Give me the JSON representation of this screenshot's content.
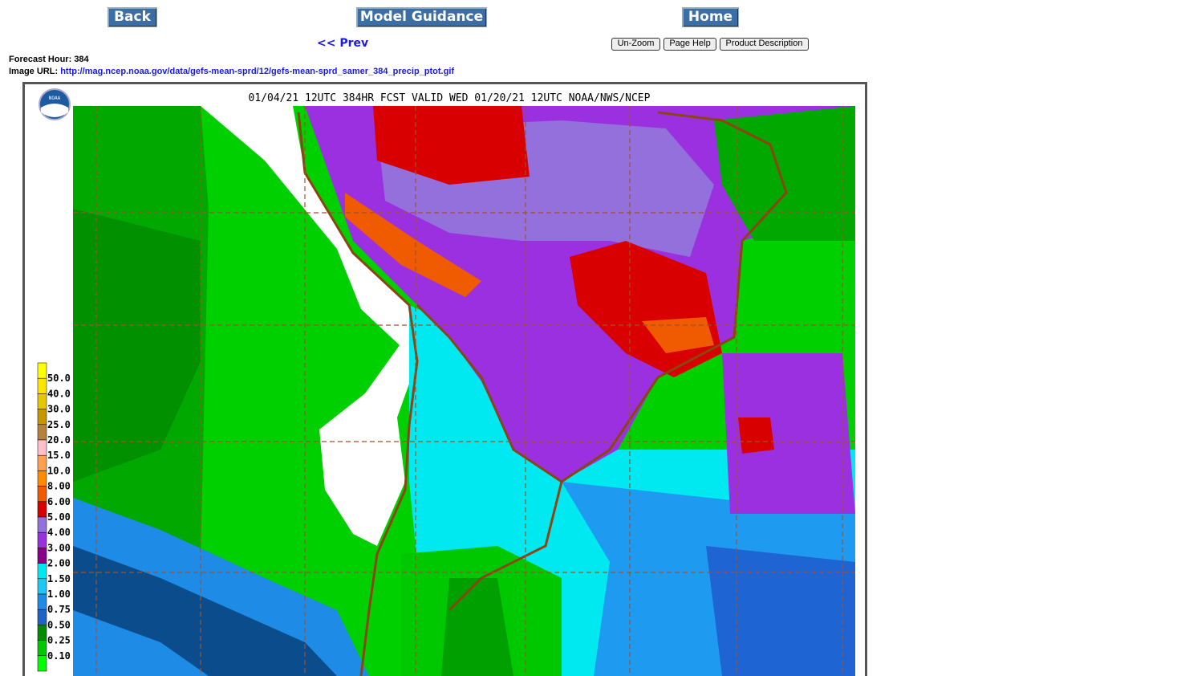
{
  "nav": {
    "back": "Back",
    "model_guidance": "Model Guidance",
    "home": "Home",
    "prev": "<< Prev",
    "unzoom": "Un-Zoom",
    "page_help": "Page Help",
    "product_description": "Product Description"
  },
  "info": {
    "forecast_hour_label": "Forecast Hour:",
    "forecast_hour": 384,
    "image_url_label": "Image URL:",
    "image_url": "http://mag.ncep.noaa.gov/data/gefs-mean-sprd/12/gefs-mean-sprd_samer_384_precip_ptot.gif"
  },
  "map": {
    "title": "01/04/21 12UTC 384HR FCST VALID WED 01/20/21 12UTC NOAA/NWS/NCEP",
    "logo": "NOAA",
    "legend": [
      "50.0",
      "40.0",
      "30.0",
      "25.0",
      "20.0",
      "15.0",
      "10.0",
      "8.00",
      "6.00",
      "5.00",
      "4.00",
      "3.00",
      "2.00",
      "1.50",
      "1.00",
      "0.75",
      "0.50",
      "0.25",
      "0.10"
    ]
  }
}
